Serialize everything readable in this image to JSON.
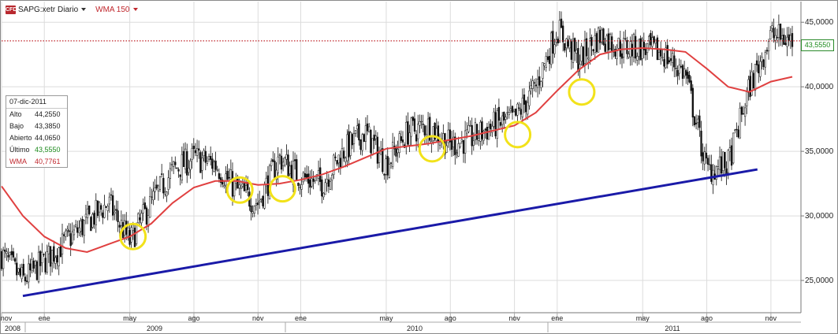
{
  "header": {
    "logo_text": "CFD",
    "instrument_label": "SAPG:xetr Diario",
    "indicator_label": "WMA 150"
  },
  "infobox": {
    "date": "07-dic-2011",
    "rows": [
      {
        "label": "Alto",
        "value": "44,2550"
      },
      {
        "label": "Bajo",
        "value": "43,3850"
      },
      {
        "label": "Abierto",
        "value": "44,0650"
      },
      {
        "label": "Último",
        "value": "43,5550"
      },
      {
        "label": "WMA",
        "value": "40,7761"
      }
    ]
  },
  "last_price_label": "43,5550",
  "colors": {
    "candles": "#111111",
    "wma": "#e04040",
    "trendline": "#1a1aa8",
    "highlight_circles": "#f2e21a",
    "last_price_line": "#c0272d",
    "last_price_label": "#1d8a1d"
  },
  "chart_data": {
    "type": "line",
    "subtype": "candlestick-with-wma",
    "series": [
      {
        "name": "SAPG:xetr Diario",
        "kind": "price",
        "x": [
          "nov 2008",
          "dic 2008",
          "ene 2009",
          "feb 2009",
          "mar 2009",
          "abr 2009",
          "may 2009",
          "jun 2009",
          "jul 2009",
          "ago 2009",
          "sep 2009",
          "oct 2009",
          "nov 2009",
          "dic 2009",
          "ene 2010",
          "feb 2010",
          "mar 2010",
          "abr 2010",
          "may 2010",
          "jun 2010",
          "jul 2010",
          "ago 2010",
          "sep 2010",
          "oct 2010",
          "nov 2010",
          "dic 2010",
          "ene 2011",
          "feb 2011",
          "mar 2011",
          "abr 2011",
          "may 2011",
          "jun 2011",
          "jul 2011",
          "ago 2011",
          "sep 2011",
          "oct 2011",
          "nov 2011",
          "dic 2011"
        ],
        "y": [
          27.0,
          25.0,
          26.5,
          28.0,
          29.5,
          31.0,
          28.0,
          31.0,
          33.5,
          34.5,
          34.0,
          32.0,
          31.0,
          34.5,
          33.0,
          32.5,
          35.0,
          36.5,
          34.0,
          36.5,
          37.0,
          35.5,
          36.0,
          37.0,
          37.5,
          40.0,
          44.5,
          42.0,
          44.0,
          43.0,
          43.0,
          42.5,
          41.0,
          33.5,
          34.0,
          40.0,
          44.0,
          43.555
        ]
      },
      {
        "name": "WMA 150",
        "kind": "wma",
        "x": [
          "nov 2008",
          "dic 2008",
          "ene 2009",
          "feb 2009",
          "mar 2009",
          "abr 2009",
          "may 2009",
          "jun 2009",
          "jul 2009",
          "ago 2009",
          "sep 2009",
          "oct 2009",
          "nov 2009",
          "dic 2009",
          "ene 2010",
          "feb 2010",
          "mar 2010",
          "abr 2010",
          "may 2010",
          "jun 2010",
          "jul 2010",
          "ago 2010",
          "sep 2010",
          "oct 2010",
          "nov 2010",
          "dic 2010",
          "ene 2011",
          "feb 2011",
          "mar 2011",
          "abr 2011",
          "may 2011",
          "jun 2011",
          "jul 2011",
          "ago 2011",
          "sep 2011",
          "oct 2011",
          "nov 2011",
          "dic 2011"
        ],
        "y": [
          32.3,
          30.0,
          28.4,
          27.5,
          27.2,
          27.8,
          28.4,
          29.4,
          31.0,
          32.2,
          32.7,
          32.7,
          32.4,
          32.5,
          32.8,
          33.2,
          33.8,
          34.5,
          35.2,
          35.4,
          35.6,
          35.9,
          36.2,
          36.6,
          37.0,
          38.0,
          39.7,
          41.3,
          42.5,
          42.9,
          43.0,
          42.9,
          42.7,
          41.4,
          40.0,
          39.6,
          40.4,
          40.7761
        ]
      },
      {
        "name": "",
        "kind": "trendline",
        "x": [
          "nov 2008",
          "oct 2011"
        ],
        "y": [
          23.8,
          33.6
        ]
      }
    ],
    "highlights": [
      {
        "x": "may 2009",
        "y": 28.4
      },
      {
        "x": "oct 2009",
        "y": 32.0
      },
      {
        "x": "dic 2009",
        "y": 32.1
      },
      {
        "x": "jul 2010",
        "y": 35.2
      },
      {
        "x": "nov 2010",
        "y": 36.3
      },
      {
        "x": "feb 2011",
        "y": 39.6
      }
    ],
    "last_price": 43.555,
    "y_ticks": [
      "25,0000",
      "30,0000",
      "35,0000",
      "40,0000",
      "45,0000"
    ],
    "y_tick_values": [
      25,
      30,
      35,
      40,
      45
    ],
    "ylim": [
      22.5,
      46.6
    ],
    "x_tick_labels": [
      "nov",
      "ene",
      "may",
      "ago",
      "nov",
      "ene",
      "may",
      "ago",
      "nov",
      "ene",
      "may",
      "ago",
      "nov"
    ],
    "year_labels": [
      "2008",
      "2009",
      "2010",
      "2011"
    ],
    "grid": true,
    "title": "",
    "xlabel": "",
    "ylabel": ""
  }
}
